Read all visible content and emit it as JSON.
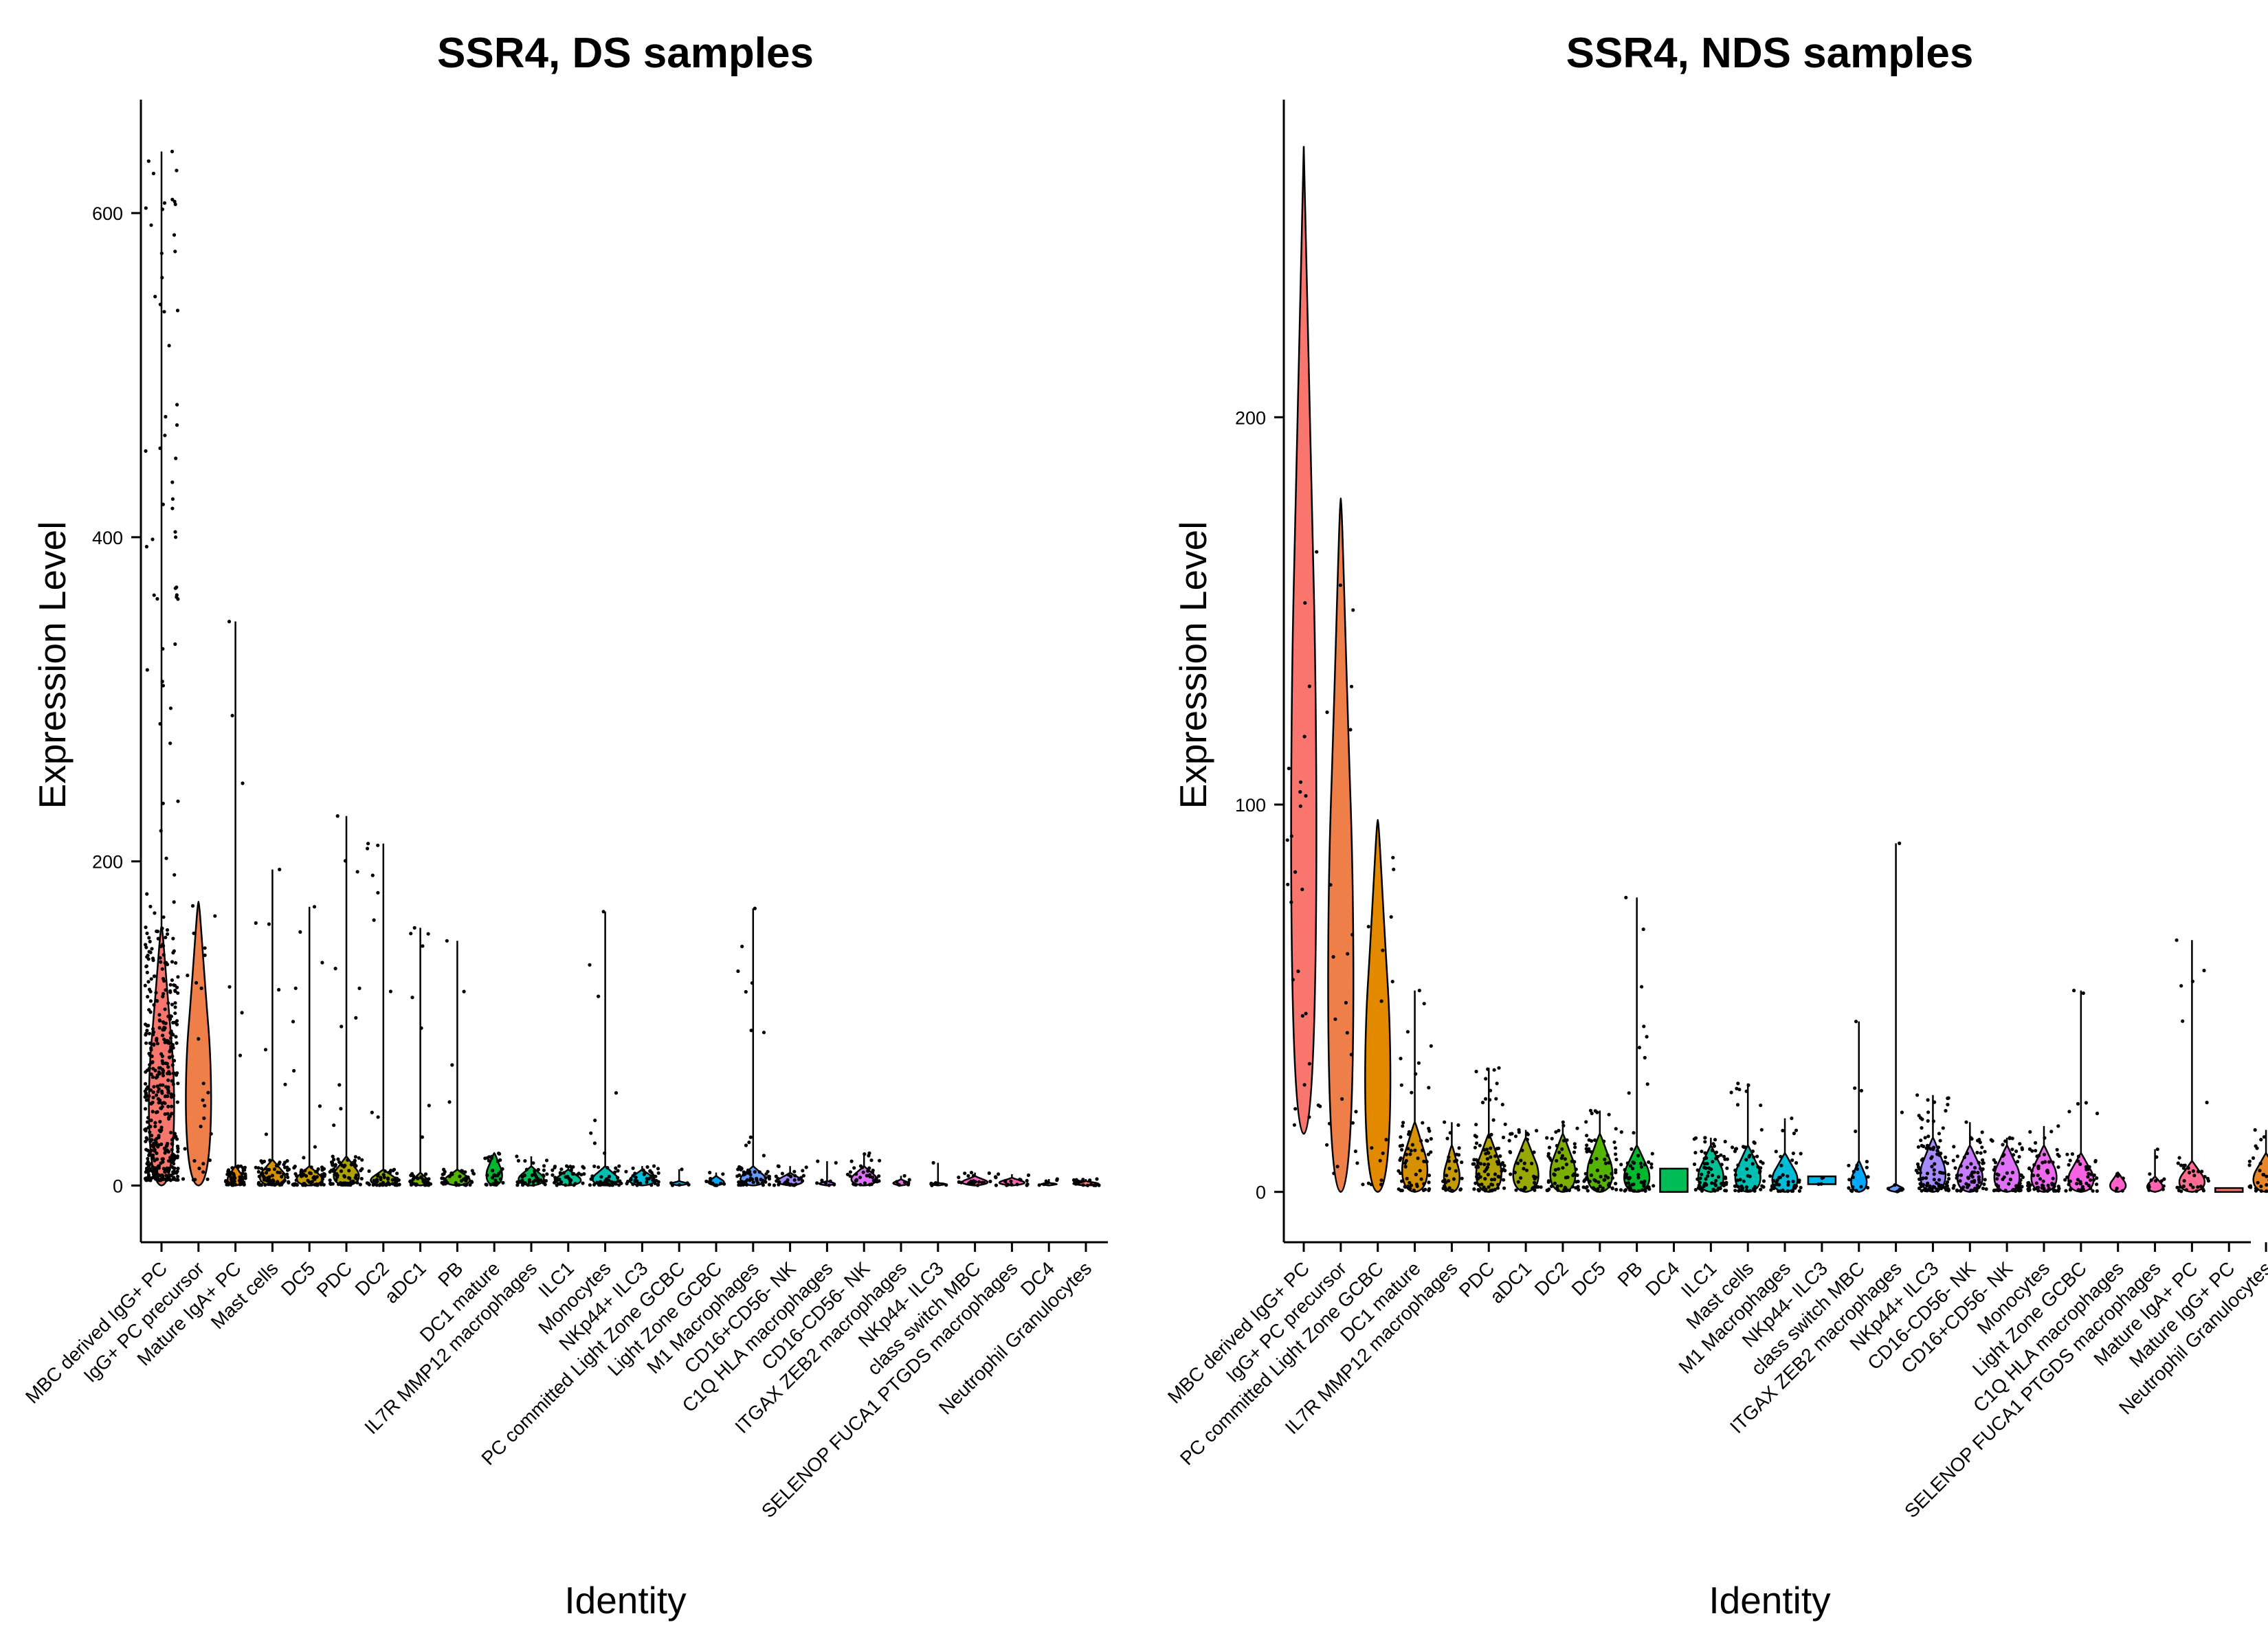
{
  "chart_data": [
    {
      "type": "violin",
      "title": "SSR4, DS samples",
      "xlabel": "Identity",
      "ylabel": "Expression Level",
      "ylim": [
        -35,
        670
      ],
      "yticks": [
        0,
        200,
        400,
        600
      ],
      "grid": false,
      "legend": "none",
      "categories": [
        "MBC derived IgG+ PC",
        "IgG+ PC precursor",
        "Mature IgA+ PC",
        "Mast cells",
        "DC5",
        "PDC",
        "DC2",
        "aDC1",
        "PB",
        "DC1 mature",
        "IL7R MMP12 macrophages",
        "ILC1",
        "Monocytes",
        "NKp44+ ILC3",
        "PC committed Light Zone GCBC",
        "Light Zone GCBC",
        "M1 Macrophages",
        "CD16+CD56- NK",
        "C1Q HLA macrophages",
        "CD16-CD56- NK",
        "ITGAX ZEB2 macrophages",
        "NKp44- ILC3",
        "class switch MBC",
        "SELENOP FUCA1 PTGDS macrophages",
        "DC4",
        "Neutrophil Granulocytes"
      ],
      "colors": [
        "#F8766D",
        "#EF7F49",
        "#E38900",
        "#D69100",
        "#C49A00",
        "#B0A100",
        "#99A800",
        "#7CAE00",
        "#53B400",
        "#00B82B",
        "#00BC56",
        "#00C094",
        "#00BFB2",
        "#00BCD8",
        "#00B6EB",
        "#00A9FF",
        "#619CFF",
        "#A58AFF",
        "#C77CFF",
        "#DF70F8",
        "#ED68ED",
        "#F763E0",
        "#FF61CC",
        "#FF64B2",
        "#FF6C91",
        "#F8766D"
      ],
      "violin_max": [
        638,
        175,
        348,
        195,
        172,
        228,
        211,
        159,
        151,
        20,
        18,
        12,
        169,
        12,
        10,
        8,
        171,
        12,
        15,
        20,
        6,
        14,
        8,
        7,
        4,
        4
      ],
      "violin_top": [
        160,
        175,
        12,
        16,
        12,
        18,
        10,
        8,
        10,
        20,
        12,
        10,
        12,
        10,
        3,
        6,
        12,
        8,
        3,
        12,
        4,
        2,
        6,
        5,
        2,
        3
      ],
      "violin_spread": [
        "wide",
        "wide",
        "narrow",
        "wide",
        "wide",
        "wide",
        "wide",
        "narrow",
        "wide",
        "narrow",
        "wide",
        "wide",
        "wide",
        "wide",
        "narrow",
        "narrow",
        "wide",
        "wide",
        "narrow",
        "wide",
        "narrow",
        "narrow",
        "wide",
        "wide",
        "narrow",
        "wide"
      ],
      "point_count": [
        500,
        26,
        70,
        80,
        70,
        90,
        60,
        40,
        45,
        30,
        40,
        40,
        50,
        40,
        6,
        12,
        60,
        30,
        8,
        40,
        8,
        6,
        20,
        18,
        6,
        20
      ]
    },
    {
      "type": "violin",
      "title": "SSR4, NDS samples",
      "xlabel": "Identity",
      "ylabel": "Expression Level",
      "ylim": [
        -13,
        282
      ],
      "yticks": [
        0,
        100,
        200
      ],
      "grid": false,
      "legend": "none",
      "categories": [
        "MBC derived IgG+ PC",
        "IgG+ PC precursor",
        "PC committed Light Zone GCBC",
        "DC1 mature",
        "IL7R MMP12 macrophages",
        "PDC",
        "aDC1",
        "DC2",
        "DC5",
        "PB",
        "DC4",
        "ILC1",
        "Mast cells",
        "M1 Macrophages",
        "NKp44- ILC3",
        "class switch MBC",
        "ITGAX ZEB2 macrophages",
        "NKp44+ ILC3",
        "CD16-CD56- NK",
        "CD16+CD56- NK",
        "Monocytes",
        "Light Zone GCBC",
        "C1Q HLA macrophages",
        "SELENOP FUCA1 PTGDS macrophages",
        "Mature IgA+ PC",
        "Mature IgG+ PC",
        "Neutrophil Granulocytes"
      ],
      "colors": [
        "#F8766D",
        "#EF7F49",
        "#E38900",
        "#D69100",
        "#C49A00",
        "#B0A100",
        "#99A800",
        "#7CAE00",
        "#53B400",
        "#00B82B",
        "#00BC56",
        "#00C094",
        "#00BFB2",
        "#00BCD8",
        "#00B6EB",
        "#00A9FF",
        "#619CFF",
        "#A58AFF",
        "#C77CFF",
        "#DF70F8",
        "#ED68ED",
        "#F763E0",
        "#FF61CC",
        "#FF64B2",
        "#FF6C91",
        "#F8766D",
        "#E88526"
      ],
      "violin_min": [
        15,
        0,
        0,
        0,
        0,
        0,
        0,
        0,
        0,
        0,
        0,
        0,
        0,
        0,
        2,
        0,
        0,
        0,
        0,
        0,
        0,
        0,
        0,
        0,
        0,
        0,
        0
      ],
      "violin_max": [
        270,
        179,
        96,
        52,
        18,
        32,
        16,
        18,
        21,
        76,
        6,
        14,
        28,
        19,
        4,
        44,
        90,
        25,
        18,
        14,
        17,
        52,
        5,
        11,
        65,
        1,
        16
      ],
      "violin_top": [
        270,
        179,
        96,
        18,
        12,
        15,
        14,
        15,
        15,
        12,
        6,
        12,
        12,
        10,
        4,
        8,
        2,
        14,
        12,
        12,
        12,
        10,
        5,
        4,
        8,
        1,
        10
      ],
      "violin_spread": [
        "wide",
        "wide",
        "wide",
        "wide",
        "narrow",
        "wide",
        "wide",
        "wide",
        "wide",
        "wide",
        "flat",
        "wide",
        "wide",
        "wide",
        "flat",
        "narrow",
        "narrow",
        "wide",
        "wide",
        "wide",
        "wide",
        "wide",
        "narrow",
        "narrow",
        "wide",
        "flat",
        "wide"
      ],
      "point_count": [
        26,
        22,
        16,
        70,
        30,
        90,
        40,
        60,
        70,
        60,
        0,
        70,
        60,
        45,
        4,
        20,
        8,
        100,
        70,
        60,
        70,
        50,
        6,
        12,
        35,
        0,
        40
      ]
    }
  ]
}
